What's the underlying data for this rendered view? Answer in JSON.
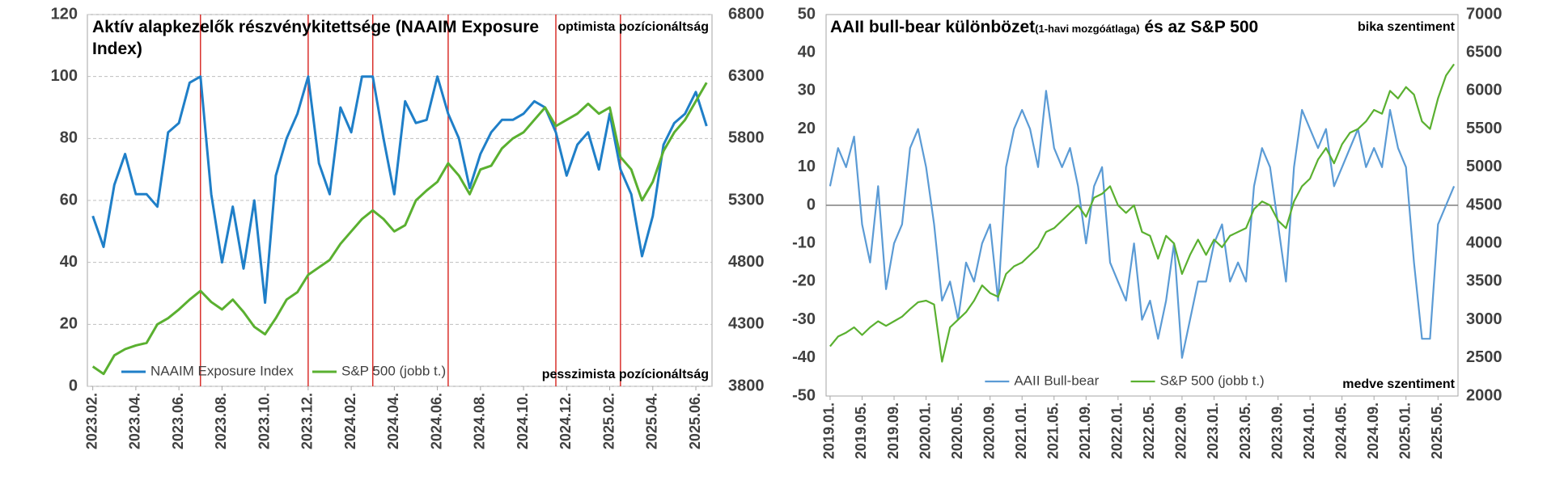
{
  "chart_data": [
    {
      "type": "line",
      "title": "Aktív alapkezelők részvénykitettsége (NAAIM Exposure Index)",
      "annotations": [
        "optimista pozícionáltság",
        "pesszimista pozícionáltság"
      ],
      "categories": [
        "2023.02.",
        null,
        null,
        null,
        "2023.04.",
        null,
        null,
        null,
        "2023.06.",
        null,
        null,
        null,
        "2023.08.",
        null,
        null,
        null,
        "2023.10.",
        null,
        null,
        null,
        "2023.12.",
        null,
        null,
        null,
        "2024.02.",
        null,
        null,
        null,
        "2024.04.",
        null,
        null,
        null,
        "2024.06.",
        null,
        null,
        null,
        "2024.08.",
        null,
        null,
        null,
        "2024.10.",
        null,
        null,
        null,
        "2024.12.",
        null,
        null,
        null,
        "2025.02.",
        null,
        null,
        null,
        "2025.04.",
        null,
        null,
        null,
        "2025.06.",
        null
      ],
      "series": [
        {
          "name": "NAAIM Exposure Index",
          "color": "#1f7fc8",
          "values": [
            55,
            45,
            65,
            75,
            62,
            62,
            58,
            82,
            85,
            98,
            100,
            62,
            40,
            58,
            38,
            60,
            27,
            68,
            80,
            88,
            100,
            72,
            62,
            90,
            82,
            100,
            100,
            80,
            62,
            92,
            85,
            86,
            100,
            88,
            80,
            64,
            75,
            82,
            86,
            86,
            88,
            92,
            90,
            82,
            68,
            78,
            82,
            70,
            88,
            70,
            62,
            42,
            55,
            78,
            85,
            88,
            95,
            84
          ]
        },
        {
          "name": "S&P 500 (jobb t.)",
          "color": "#5ab030",
          "axis": "y2",
          "values": [
            3960,
            3900,
            4050,
            4100,
            4130,
            4150,
            4300,
            4350,
            4420,
            4500,
            4570,
            4480,
            4420,
            4500,
            4400,
            4280,
            4220,
            4350,
            4500,
            4560,
            4700,
            4760,
            4820,
            4950,
            5050,
            5150,
            5220,
            5150,
            5050,
            5100,
            5300,
            5380,
            5450,
            5600,
            5500,
            5350,
            5550,
            5580,
            5720,
            5800,
            5850,
            5950,
            6050,
            5900,
            5950,
            6000,
            6080,
            6000,
            6050,
            5650,
            5550,
            5300,
            5450,
            5700,
            5850,
            5950,
            6100,
            6250
          ]
        }
      ],
      "ylim": [
        0,
        120
      ],
      "yticks": [
        0,
        20,
        40,
        60,
        80,
        100,
        120
      ],
      "y2lim": [
        3800,
        6800
      ],
      "y2ticks": [
        3800,
        4300,
        4800,
        5300,
        5800,
        6300,
        6800
      ],
      "grid": true,
      "zero_line": false,
      "legend": "lower left",
      "vlines": {
        "color": "#d9302c",
        "at": [
          10,
          20,
          26,
          33,
          43,
          49
        ]
      }
    },
    {
      "type": "line",
      "title": "AAII bull-bear különbözet",
      "title_note": "(1-havi mozgóátlaga)",
      "title_suffix": "és az S&P 500",
      "annotations": [
        "bika szentiment",
        "medve szentiment"
      ],
      "categories": [
        "2019.01.",
        null,
        null,
        null,
        "2019.05.",
        null,
        null,
        null,
        "2019.09.",
        null,
        null,
        null,
        "2020.01.",
        null,
        null,
        null,
        "2020.05.",
        null,
        null,
        null,
        "2020.09.",
        null,
        null,
        null,
        "2021.01.",
        null,
        null,
        null,
        "2021.05.",
        null,
        null,
        null,
        "2021.09.",
        null,
        null,
        null,
        "2022.01.",
        null,
        null,
        null,
        "2022.05.",
        null,
        null,
        null,
        "2022.09.",
        null,
        null,
        null,
        "2023.01.",
        null,
        null,
        null,
        "2023.05.",
        null,
        null,
        null,
        "2023.09.",
        null,
        null,
        null,
        "2024.01.",
        null,
        null,
        null,
        "2024.05.",
        null,
        null,
        null,
        "2024.09.",
        null,
        null,
        null,
        "2025.01.",
        null,
        null,
        null,
        "2025.05.",
        null,
        null
      ],
      "series": [
        {
          "name": "AAII Bull-bear",
          "color": "#5b9bd5",
          "values": [
            5,
            15,
            10,
            18,
            -5,
            -15,
            5,
            -22,
            -10,
            -5,
            15,
            20,
            10,
            -5,
            -25,
            -20,
            -30,
            -15,
            -20,
            -10,
            -5,
            -25,
            10,
            20,
            25,
            20,
            10,
            30,
            15,
            10,
            15,
            5,
            -10,
            5,
            10,
            -15,
            -20,
            -25,
            -10,
            -30,
            -25,
            -35,
            -25,
            -10,
            -40,
            -30,
            -20,
            -20,
            -10,
            -5,
            -20,
            -15,
            -20,
            5,
            15,
            10,
            -5,
            -20,
            10,
            25,
            20,
            15,
            20,
            5,
            10,
            15,
            20,
            10,
            15,
            10,
            25,
            15,
            10,
            -15,
            -35,
            -35,
            -5,
            0,
            5
          ]
        },
        {
          "name": "S&P 500 (jobb t.)",
          "color": "#5ab030",
          "axis": "y2",
          "values": [
            2650,
            2780,
            2830,
            2900,
            2800,
            2900,
            2980,
            2920,
            2980,
            3040,
            3140,
            3230,
            3250,
            3200,
            2450,
            2900,
            3000,
            3100,
            3250,
            3450,
            3350,
            3300,
            3600,
            3700,
            3750,
            3850,
            3950,
            4150,
            4200,
            4300,
            4400,
            4500,
            4350,
            4600,
            4650,
            4750,
            4500,
            4400,
            4500,
            4150,
            4100,
            3800,
            4100,
            4000,
            3600,
            3850,
            4050,
            3850,
            4050,
            3950,
            4100,
            4150,
            4200,
            4450,
            4550,
            4500,
            4300,
            4200,
            4550,
            4750,
            4850,
            5100,
            5250,
            5050,
            5300,
            5450,
            5500,
            5600,
            5750,
            5700,
            6000,
            5900,
            6050,
            5950,
            5600,
            5500,
            5900,
            6200,
            6350
          ]
        }
      ],
      "ylim": [
        -50,
        50
      ],
      "yticks": [
        -50,
        -40,
        -30,
        -20,
        -10,
        0,
        10,
        20,
        30,
        40,
        50
      ],
      "y2lim": [
        2000,
        7000
      ],
      "y2ticks": [
        2000,
        2500,
        3000,
        3500,
        4000,
        4500,
        5000,
        5500,
        6000,
        6500,
        7000
      ],
      "grid": false,
      "zero_line": true,
      "legend": "lower center"
    }
  ]
}
